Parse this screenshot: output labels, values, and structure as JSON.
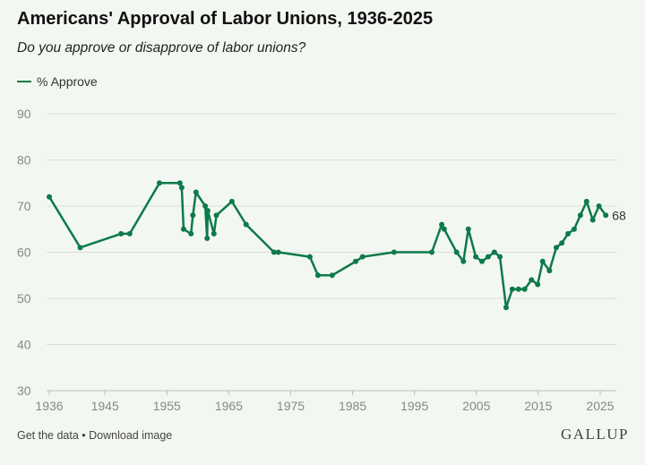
{
  "chart_data": {
    "type": "line",
    "title": "Americans' Approval of Labor Unions, 1936-2025",
    "subtitle": "Do you approve or disapprove of labor unions?",
    "xlabel": "",
    "ylabel": "",
    "xlim": [
      1936,
      2025
    ],
    "ylim": [
      30,
      90
    ],
    "x_ticks": [
      1936,
      1945,
      1955,
      1965,
      1975,
      1985,
      1995,
      2005,
      2015,
      2025
    ],
    "y_ticks": [
      30,
      40,
      50,
      60,
      70,
      80,
      90
    ],
    "grid": true,
    "legend_position": "top-left",
    "color": "#0d7a4a",
    "series": [
      {
        "name": "% Approve",
        "x": [
          1936,
          1941,
          1947.6,
          1949,
          1953.8,
          1957.1,
          1957.4,
          1957.7,
          1958.9,
          1959.2,
          1959.7,
          1961.2,
          1961.5,
          1961.6,
          1962.6,
          1963,
          1965.5,
          1967.8,
          1972.3,
          1973,
          1978.1,
          1979.4,
          1981.7,
          1985.5,
          1986.6,
          1991.7,
          1997.8,
          1999.4,
          1999.8,
          2001.8,
          2002.9,
          2003.7,
          2004.9,
          2005.9,
          2006.9,
          2007.9,
          2008.8,
          2009.8,
          2010.8,
          2011.8,
          2012.8,
          2013.9,
          2014.9,
          2015.7,
          2016.8,
          2017.9,
          2018.8,
          2019.8,
          2020.8,
          2021.8,
          2022.8,
          2023.8,
          2024.8,
          2025.9
        ],
        "values": [
          72,
          61,
          64,
          64,
          75,
          75,
          74,
          65,
          64,
          68,
          73,
          70,
          63,
          69,
          64,
          68,
          71,
          66,
          60,
          60,
          59,
          55,
          55,
          58,
          59,
          60,
          60,
          66,
          65,
          60,
          58,
          65,
          59,
          58,
          59,
          60,
          59,
          48,
          52,
          52,
          52,
          54,
          53,
          58,
          56,
          61,
          62,
          64,
          65,
          68,
          71,
          67,
          70,
          68
        ]
      }
    ],
    "end_label": "68"
  },
  "footer": {
    "get_data": "Get the data",
    "separator": " • ",
    "download": "Download image",
    "logo": "GALLUP"
  }
}
